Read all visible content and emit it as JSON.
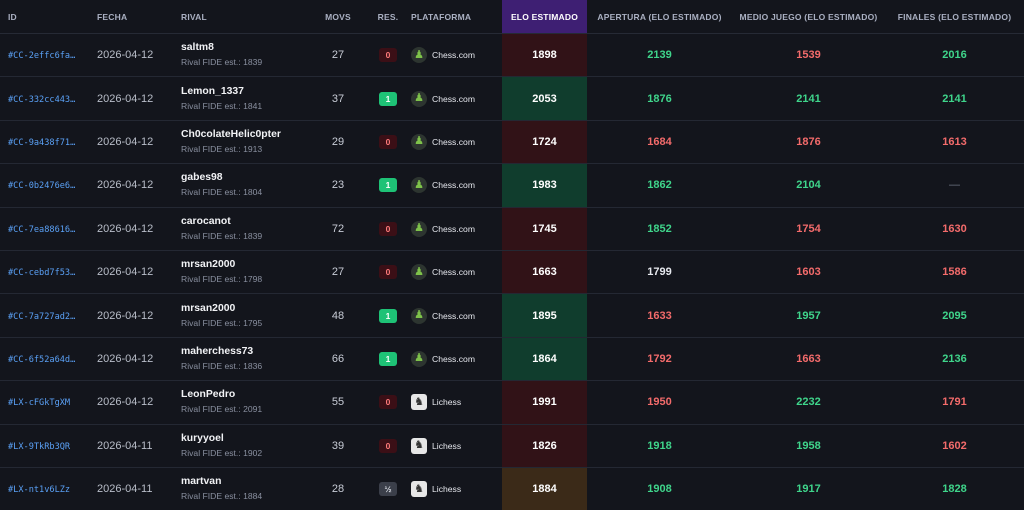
{
  "headers": {
    "id": "ID",
    "date": "FECHA",
    "rival": "RIVAL",
    "movs": "MOVS",
    "res": "RES.",
    "platform": "PLATAFORMA",
    "elo": "ELO ESTIMADO",
    "opening": "APERTURA (ELO ESTIMADO)",
    "middle": "MEDIO JUEGO (ELO ESTIMADO)",
    "endgame": "FINALES (ELO ESTIMADO)"
  },
  "colors": {
    "win": "#1ec276",
    "loss": "#3b0f16",
    "draw": "#3b3f4a",
    "elo_header": "#3e1f73",
    "good": "#3fd58b",
    "bad": "#f36b6b"
  },
  "rows": [
    {
      "id": "#CC-2effc6fa…",
      "date": "2026-04-12",
      "rival": "saltm8",
      "fide_label": "Rival FIDE est.:",
      "fide": "1839",
      "movs": "27",
      "res": "0",
      "result_kind": "loss",
      "platform": "Chess.com",
      "platform_icon": "pawn-icon",
      "elo": "1898",
      "opening": "2139",
      "opening_tone": "good",
      "middle": "1539",
      "middle_tone": "bad",
      "endgame": "2016",
      "endgame_tone": "good"
    },
    {
      "id": "#CC-332cc443…",
      "date": "2026-04-12",
      "rival": "Lemon_1337",
      "fide_label": "Rival FIDE est.:",
      "fide": "1841",
      "movs": "37",
      "res": "1",
      "result_kind": "win",
      "platform": "Chess.com",
      "platform_icon": "pawn-icon",
      "elo": "2053",
      "opening": "1876",
      "opening_tone": "good",
      "middle": "2141",
      "middle_tone": "good",
      "endgame": "2141",
      "endgame_tone": "good"
    },
    {
      "id": "#CC-9a438f71…",
      "date": "2026-04-12",
      "rival": "Ch0colateHelic0pter",
      "fide_label": "Rival FIDE est.:",
      "fide": "1913",
      "movs": "29",
      "res": "0",
      "result_kind": "loss",
      "platform": "Chess.com",
      "platform_icon": "pawn-icon",
      "elo": "1724",
      "opening": "1684",
      "opening_tone": "bad",
      "middle": "1876",
      "middle_tone": "bad",
      "endgame": "1613",
      "endgame_tone": "bad"
    },
    {
      "id": "#CC-0b2476e6…",
      "date": "2026-04-12",
      "rival": "gabes98",
      "fide_label": "Rival FIDE est.:",
      "fide": "1804",
      "movs": "23",
      "res": "1",
      "result_kind": "win",
      "platform": "Chess.com",
      "platform_icon": "pawn-icon",
      "elo": "1983",
      "opening": "1862",
      "opening_tone": "good",
      "middle": "2104",
      "middle_tone": "good",
      "endgame": "—",
      "endgame_tone": "none"
    },
    {
      "id": "#CC-7ea88616…",
      "date": "2026-04-12",
      "rival": "carocanot",
      "fide_label": "Rival FIDE est.:",
      "fide": "1839",
      "movs": "72",
      "res": "0",
      "result_kind": "loss",
      "platform": "Chess.com",
      "platform_icon": "pawn-icon",
      "elo": "1745",
      "opening": "1852",
      "opening_tone": "good",
      "middle": "1754",
      "middle_tone": "bad",
      "endgame": "1630",
      "endgame_tone": "bad"
    },
    {
      "id": "#CC-cebd7f53…",
      "date": "2026-04-12",
      "rival": "mrsan2000",
      "fide_label": "Rival FIDE est.:",
      "fide": "1798",
      "movs": "27",
      "res": "0",
      "result_kind": "loss",
      "platform": "Chess.com",
      "platform_icon": "pawn-icon",
      "elo": "1663",
      "opening": "1799",
      "opening_tone": "neutral",
      "middle": "1603",
      "middle_tone": "bad",
      "endgame": "1586",
      "endgame_tone": "bad"
    },
    {
      "id": "#CC-7a727ad2…",
      "date": "2026-04-12",
      "rival": "mrsan2000",
      "fide_label": "Rival FIDE est.:",
      "fide": "1795",
      "movs": "48",
      "res": "1",
      "result_kind": "win",
      "platform": "Chess.com",
      "platform_icon": "pawn-icon",
      "elo": "1895",
      "opening": "1633",
      "opening_tone": "bad",
      "middle": "1957",
      "middle_tone": "good",
      "endgame": "2095",
      "endgame_tone": "good"
    },
    {
      "id": "#CC-6f52a64d…",
      "date": "2026-04-12",
      "rival": "maherchess73",
      "fide_label": "Rival FIDE est.:",
      "fide": "1836",
      "movs": "66",
      "res": "1",
      "result_kind": "win",
      "platform": "Chess.com",
      "platform_icon": "pawn-icon",
      "elo": "1864",
      "opening": "1792",
      "opening_tone": "bad",
      "middle": "1663",
      "middle_tone": "bad",
      "endgame": "2136",
      "endgame_tone": "good"
    },
    {
      "id": "#LX-cFGkTgXM",
      "date": "2026-04-12",
      "rival": "LeonPedro",
      "fide_label": "Rival FIDE est.:",
      "fide": "2091",
      "movs": "55",
      "res": "0",
      "result_kind": "loss",
      "platform": "Lichess",
      "platform_icon": "knight-icon",
      "elo": "1991",
      "opening": "1950",
      "opening_tone": "bad",
      "middle": "2232",
      "middle_tone": "good",
      "endgame": "1791",
      "endgame_tone": "bad"
    },
    {
      "id": "#LX-9TkRb3QR",
      "date": "2026-04-11",
      "rival": "kuryyoel",
      "fide_label": "Rival FIDE est.:",
      "fide": "1902",
      "movs": "39",
      "res": "0",
      "result_kind": "loss",
      "platform": "Lichess",
      "platform_icon": "knight-icon",
      "elo": "1826",
      "opening": "1918",
      "opening_tone": "good",
      "middle": "1958",
      "middle_tone": "good",
      "endgame": "1602",
      "endgame_tone": "bad"
    },
    {
      "id": "#LX-nt1v6LZz",
      "date": "2026-04-11",
      "rival": "martvan",
      "fide_label": "Rival FIDE est.:",
      "fide": "1884",
      "movs": "28",
      "res": "½",
      "result_kind": "draw",
      "platform": "Lichess",
      "platform_icon": "knight-icon",
      "elo": "1884",
      "opening": "1908",
      "opening_tone": "good",
      "middle": "1917",
      "middle_tone": "good",
      "endgame": "1828",
      "endgame_tone": "good"
    }
  ]
}
